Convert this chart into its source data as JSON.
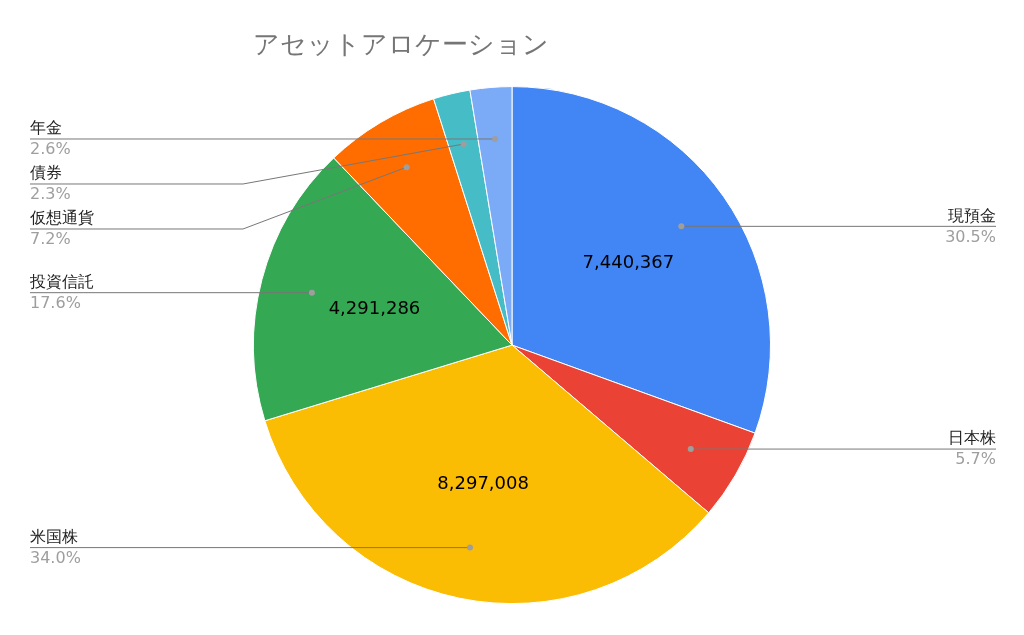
{
  "chart_data": {
    "type": "pie",
    "title": "アセットアロケーション",
    "categories": [
      "現預金",
      "日本株",
      "米国株",
      "投資信託",
      "仮想通貨",
      "債券",
      "年金"
    ],
    "values": [
      30.5,
      5.7,
      34.0,
      17.6,
      7.2,
      2.3,
      2.6
    ],
    "value_labels": [
      "30.5%",
      "5.7%",
      "34.0%",
      "17.6%",
      "7.2%",
      "2.3%",
      "2.6%"
    ],
    "annotations": [
      {
        "text": "7,440,367",
        "x": "現預金"
      },
      {
        "text": "8,297,008",
        "x": "米国株"
      },
      {
        "text": "4,291,286",
        "x": "投資信託"
      }
    ],
    "colors": [
      "#4285f4",
      "#ea4335",
      "#fbbc04",
      "#34a853",
      "#ff6d01",
      "#46bdc6",
      "#7baaf7"
    ],
    "legend": false
  }
}
